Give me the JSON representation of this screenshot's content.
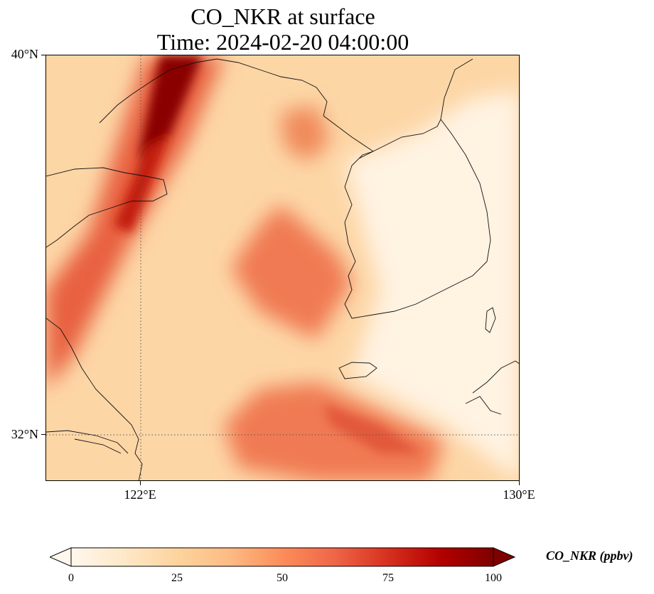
{
  "title": {
    "line1": "CO_NKR at surface",
    "line2": "Time: 2024-02-20 04:00:00"
  },
  "map": {
    "extent": {
      "lon_min": 118,
      "lon_max": 130,
      "lat_min": 30.8,
      "lat_max": 40
    },
    "lat_ticks": [
      {
        "value": 40,
        "label": "40°N"
      },
      {
        "value": 32,
        "label": "32°N"
      }
    ],
    "lon_ticks": [
      {
        "value": 122,
        "label": "122°E"
      },
      {
        "value": 130,
        "label": "130°E"
      }
    ],
    "gridlines": "dotted",
    "background_level": 22
  },
  "colorbar": {
    "label": "CO_NKR (ppbv)",
    "min": 0,
    "max": 100,
    "extend": "both",
    "colormap": "OrRd",
    "ticks": [
      "0",
      "25",
      "50",
      "75",
      "100"
    ],
    "colors": [
      "#fff7ec",
      "#fee8c8",
      "#fdd49e",
      "#fdbb84",
      "#fc8d59",
      "#ef6548",
      "#d7301f",
      "#b30000",
      "#7f0000"
    ]
  },
  "plumes": [
    {
      "name": "northwest-diagonal-plume",
      "value": 70
    },
    {
      "name": "northwest-plume-core",
      "value": 95
    },
    {
      "name": "central-yellow-sea-blob",
      "value": 55
    },
    {
      "name": "southern-plume-band",
      "value": 60
    },
    {
      "name": "bohai-patch",
      "value": 60
    },
    {
      "name": "korean-peninsula-low",
      "value": 15
    }
  ]
}
